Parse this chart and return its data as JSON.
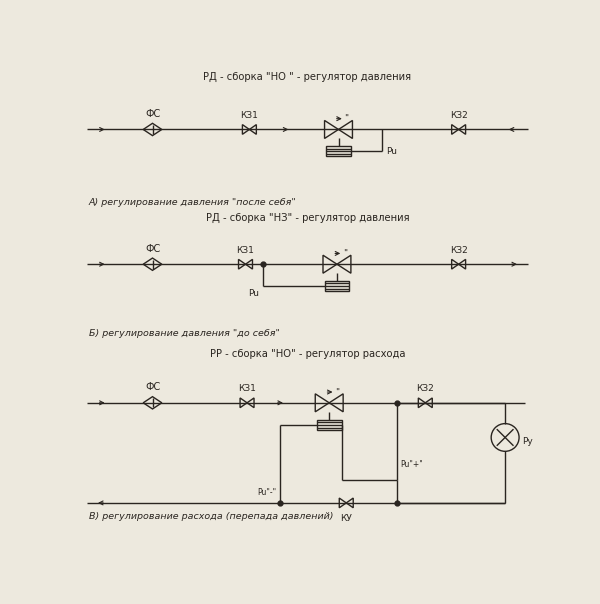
{
  "title_a": "РД - сборка \"НО \" - регулятор давления",
  "title_b": "РД - сборка \"НЗ\" - регулятор давления",
  "title_c": "РР - сборка \"НО\" - регулятор расхода",
  "label_a": "А) регулирование давления \"после себя\"",
  "label_b": "Б) регулирование давления \"до себя\"",
  "label_c": "В) регулирование расхода (перепада давлений)",
  "bg_color": "#ede9de",
  "line_color": "#2a2520",
  "font_size": 7.0,
  "label_font_size": 6.8,
  "title_font_size": 7.2
}
